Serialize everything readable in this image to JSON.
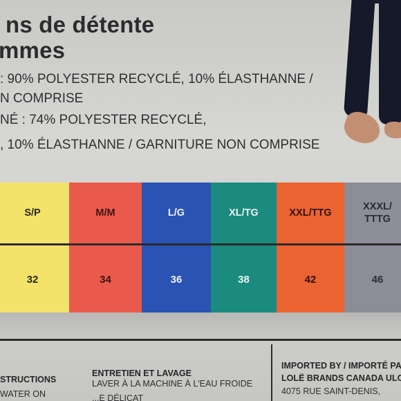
{
  "header": {
    "cutoff_top": "",
    "title_line1": "ns de détente",
    "title_line2": "mmes"
  },
  "composition": {
    "line1": ": 90% POLYESTER RECYCLÉ, 10% ÉLASTHANNE /",
    "line2": "N COMPRISE",
    "line3": "NÉ : 74% POLYESTER RECYCLÉ,",
    "line4": ", 10% ÉLASTHANNE / GARNITURE NON COMPRISE"
  },
  "size_table": {
    "columns": [
      {
        "size": "S/P",
        "value": "32",
        "bg": "#f3e36a",
        "text": "#2a2620"
      },
      {
        "size": "M/M",
        "value": "34",
        "bg": "#ea5a4c",
        "text": "#3a1512"
      },
      {
        "size": "L/G",
        "value": "36",
        "bg": "#2a53b4",
        "text": "#f2f2f4"
      },
      {
        "size": "XL/TG",
        "value": "38",
        "bg": "#1a8b7e",
        "text": "#eef4f2"
      },
      {
        "size": "XXL/TTG",
        "value": "42",
        "bg": "#ec6332",
        "text": "#2e120a"
      },
      {
        "size": "XXXL/\nTTTG",
        "value": "46",
        "bg": "#8c8d98",
        "text": "#2a2a30"
      }
    ]
  },
  "footer": {
    "instructions": {
      "heading": "STRUCTIONS",
      "line1": "WATER ON"
    },
    "care": {
      "heading": "ENTRETIEN ET LAVAGE",
      "line1": "LAVER À LA MACHINE À L'EAU FROIDE",
      "line2": "...E DÉLICAT"
    },
    "importer": {
      "heading1": "IMPORTED BY / IMPORTÉ PAR",
      "heading2": "LOLË BRANDS CANADA ULC",
      "line1": "4075 RUE SAINT-DENIS,"
    }
  }
}
